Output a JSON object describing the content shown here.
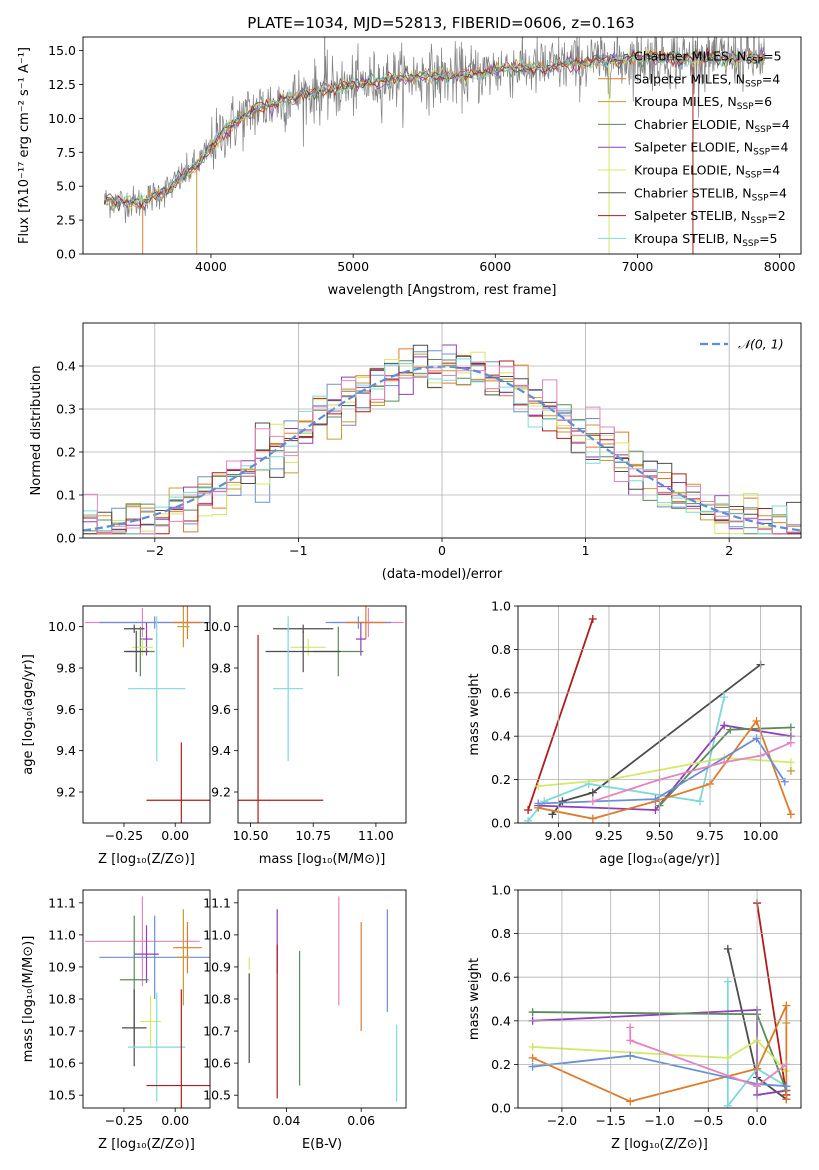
{
  "figure": {
    "title": "PLATE=1034, MJD=52813, FIBERID=0606, z=0.163"
  },
  "colors": {
    "Chabrier_MILES": "#6b8fd6",
    "Salpeter_MILES": "#e07b2a",
    "Kroupa_MILES": "#cc9a2e",
    "Chabrier_ELODIE": "#5b8a5b",
    "Salpeter_ELODIE": "#8f3fb8",
    "Kroupa_ELODIE": "#d4e86a",
    "Chabrier_STELIB": "#4d4d4d",
    "Salpeter_STELIB": "#b01c1c",
    "Kroupa_STELIB": "#7fd9d9",
    "pink": "#e584c0",
    "gaussian": "#5b8ed6",
    "grid": "#b0b0b0"
  },
  "chart_data": [
    {
      "id": "spectrum",
      "type": "line",
      "xlabel": "wavelength [Angstrom, rest frame]",
      "ylabel": "Flux [fλ10⁻¹⁷ erg cm⁻² s⁻¹ A⁻¹]",
      "xlim": [
        3100,
        8150
      ],
      "ylim": [
        0,
        16.0
      ],
      "xticks": [
        4000,
        5000,
        6000,
        7000,
        8000
      ],
      "yticks": [
        0.0,
        2.5,
        5.0,
        7.5,
        10.0,
        12.5,
        15.0
      ],
      "envelope": {
        "x": [
          3250,
          3500,
          3700,
          3900,
          4000,
          4100,
          4300,
          4500,
          4700,
          4900,
          5100,
          5300,
          5500,
          5700,
          5900,
          6100,
          6300,
          6500,
          6700,
          6900,
          7100,
          7300,
          7500,
          7700,
          7900
        ],
        "y": [
          3.9,
          3.8,
          4.8,
          6.6,
          7.9,
          9.2,
          10.6,
          11.3,
          11.9,
          12.2,
          12.6,
          13.0,
          13.1,
          13.1,
          13.3,
          13.8,
          13.7,
          14.0,
          14.2,
          14.3,
          14.5,
          14.4,
          14.5,
          14.4,
          14.5
        ]
      },
      "legend": [
        {
          "name": "Chabrier MILES, N",
          "sub": "SSP",
          "tail": "=5",
          "color_key": "Chabrier_MILES"
        },
        {
          "name": "Salpeter MILES, N",
          "sub": "SSP",
          "tail": "=4",
          "color_key": "Salpeter_MILES"
        },
        {
          "name": "Kroupa MILES, N",
          "sub": "SSP",
          "tail": "=6",
          "color_key": "Kroupa_MILES"
        },
        {
          "name": "Chabrier ELODIE, N",
          "sub": "SSP",
          "tail": "=4",
          "color_key": "Chabrier_ELODIE"
        },
        {
          "name": "Salpeter ELODIE, N",
          "sub": "SSP",
          "tail": "=4",
          "color_key": "Salpeter_ELODIE"
        },
        {
          "name": "Kroupa ELODIE, N",
          "sub": "SSP",
          "tail": "=4",
          "color_key": "Kroupa_ELODIE"
        },
        {
          "name": "Chabrier STELIB, N",
          "sub": "SSP",
          "tail": "=4",
          "color_key": "Chabrier_STELIB"
        },
        {
          "name": "Salpeter STELIB, N",
          "sub": "SSP",
          "tail": "=2",
          "color_key": "Salpeter_STELIB"
        },
        {
          "name": "Kroupa STELIB, N",
          "sub": "SSP",
          "tail": "=5",
          "color_key": "Kroupa_STELIB"
        }
      ],
      "legend_placement": "right"
    },
    {
      "id": "residuals",
      "type": "line",
      "xlabel": "(data-model)/error",
      "ylabel": "Normed distribution",
      "xlim": [
        -2.5,
        2.5
      ],
      "ylim": [
        0,
        0.5
      ],
      "xticks": [
        -2,
        -1,
        0,
        1,
        2
      ],
      "yticks": [
        0.0,
        0.1,
        0.2,
        0.3,
        0.4
      ],
      "grid": true,
      "bin_edges": [
        -2.5,
        -2.4,
        -2.3,
        -2.2,
        -2.1,
        -2.0,
        -1.9,
        -1.8,
        -1.7,
        -1.6,
        -1.5,
        -1.4,
        -1.3,
        -1.2,
        -1.1,
        -1.0,
        -0.9,
        -0.8,
        -0.7,
        -0.6,
        -0.5,
        -0.4,
        -0.3,
        -0.2,
        -0.1,
        0.0,
        0.1,
        0.2,
        0.3,
        0.4,
        0.5,
        0.6,
        0.7,
        0.8,
        0.9,
        1.0,
        1.1,
        1.2,
        1.3,
        1.4,
        1.5,
        1.6,
        1.7,
        1.8,
        1.9,
        2.0,
        2.1,
        2.2,
        2.3,
        2.4,
        2.5
      ],
      "gaussian": {
        "label": "𝒩(0, 1)",
        "mean": 0,
        "sigma": 1
      },
      "legend_placement": "top-right"
    },
    {
      "id": "age_vs_Z",
      "type": "scatter",
      "xlabel": "Z [log₁₀(Z/Z⊙)]",
      "ylabel": "age  [log₁₀(age/yr)]",
      "xlim": [
        -0.45,
        0.17
      ],
      "ylim": [
        9.05,
        10.1
      ],
      "xticks": [
        -0.25,
        0.0
      ],
      "yticks": [
        9.2,
        9.4,
        9.6,
        9.8,
        10.0
      ],
      "errorbars": [
        {
          "color_key": "pink",
          "x": -0.16,
          "y": 10.02,
          "xerr": 0.28,
          "yerr": 0.07
        },
        {
          "color_key": "Chabrier_MILES",
          "x": -0.1,
          "y": 10.02,
          "xerr": 0.27,
          "yerr": 0.03
        },
        {
          "color_key": "Salpeter_MILES",
          "x": 0.06,
          "y": 10.02,
          "xerr": 0.07,
          "yerr": 0.08
        },
        {
          "color_key": "Kroupa_MILES",
          "x": 0.04,
          "y": 10.0,
          "xerr": 0.03,
          "yerr": 0.1
        },
        {
          "color_key": "Salpeter_ELODIE",
          "x": -0.14,
          "y": 9.94,
          "xerr": 0.03,
          "yerr": 0.08
        },
        {
          "color_key": "Chabrier_STELIB",
          "x": -0.2,
          "y": 9.99,
          "xerr": 0.05,
          "yerr": 0.02
        },
        {
          "color_key": "Chabrier_ELODIE",
          "x": -0.17,
          "y": 9.88,
          "xerr": 0.07,
          "yerr": 0.12
        },
        {
          "color_key": "Kroupa_ELODIE",
          "x": -0.16,
          "y": 9.9,
          "xerr": 0.05,
          "yerr": 0.04
        },
        {
          "color_key": "Chabrier_STELIB",
          "x": -0.19,
          "y": 9.88,
          "xerr": 0.06,
          "yerr": 0.1
        },
        {
          "color_key": "Kroupa_STELIB",
          "x": -0.09,
          "y": 9.7,
          "xerr": 0.14,
          "yerr": 0.35
        },
        {
          "color_key": "Salpeter_STELIB",
          "x": 0.03,
          "y": 9.16,
          "xerr": 0.17,
          "yerr": 0.28
        }
      ]
    },
    {
      "id": "age_vs_mass",
      "type": "scatter",
      "xlabel": "mass [log₁₀(M/M⊙)]",
      "ylabel": "",
      "xlim": [
        10.45,
        11.12
      ],
      "ylim": [
        9.05,
        10.1
      ],
      "xticks": [
        10.5,
        10.75,
        11.0
      ],
      "yticks": [
        9.2,
        9.4,
        9.6,
        9.8,
        10.0
      ],
      "errorbars": [
        {
          "color_key": "pink",
          "x": 10.97,
          "y": 10.02,
          "xerr": 0.14,
          "yerr": 0.07
        },
        {
          "color_key": "Chabrier_MILES",
          "x": 10.93,
          "y": 10.02,
          "xerr": 0.13,
          "yerr": 0.03
        },
        {
          "color_key": "Salpeter_MILES",
          "x": 10.96,
          "y": 10.02,
          "xerr": 0.08,
          "yerr": 0.08
        },
        {
          "color_key": "Salpeter_ELODIE",
          "x": 10.94,
          "y": 9.94,
          "xerr": 0.02,
          "yerr": 0.08
        },
        {
          "color_key": "Chabrier_STELIB",
          "x": 10.71,
          "y": 9.99,
          "xerr": 0.12,
          "yerr": 0.02
        },
        {
          "color_key": "Chabrier_ELODIE",
          "x": 10.85,
          "y": 9.88,
          "xerr": 0.1,
          "yerr": 0.12
        },
        {
          "color_key": "Kroupa_ELODIE",
          "x": 10.73,
          "y": 9.9,
          "xerr": 0.07,
          "yerr": 0.04
        },
        {
          "color_key": "Chabrier_STELIB",
          "x": 10.71,
          "y": 9.88,
          "xerr": 0.15,
          "yerr": 0.1
        },
        {
          "color_key": "Kroupa_STELIB",
          "x": 10.65,
          "y": 9.7,
          "xerr": 0.06,
          "yerr": 0.35
        },
        {
          "color_key": "Salpeter_STELIB",
          "x": 10.53,
          "y": 9.16,
          "xerr": 0.26,
          "yerr": 0.8
        }
      ]
    },
    {
      "id": "weight_vs_age",
      "type": "line",
      "xlabel": "age  [log₁₀(age/yr)]",
      "ylabel": "mass weight",
      "xlim": [
        8.8,
        10.2
      ],
      "ylim": [
        0,
        1.0
      ],
      "xticks": [
        9.0,
        9.25,
        9.5,
        9.75,
        10.0
      ],
      "yticks": [
        0.0,
        0.2,
        0.4,
        0.6,
        0.8,
        1.0
      ],
      "grid": true,
      "series": [
        {
          "color_key": "Salpeter_STELIB",
          "x": [
            8.85,
            9.17
          ],
          "y": [
            0.06,
            0.94
          ]
        },
        {
          "color_key": "Chabrier_STELIB",
          "x": [
            8.97,
            9.02,
            9.17,
            10.0
          ],
          "y": [
            0.04,
            0.1,
            0.14,
            0.73
          ]
        },
        {
          "color_key": "Kroupa_STELIB",
          "x": [
            8.85,
            8.93,
            9.15,
            9.7,
            9.82
          ],
          "y": [
            0.01,
            0.1,
            0.18,
            0.1,
            0.58
          ]
        },
        {
          "color_key": "Salpeter_ELODIE",
          "x": [
            8.9,
            9.48,
            9.82,
            10.15
          ],
          "y": [
            0.08,
            0.06,
            0.45,
            0.4
          ]
        },
        {
          "color_key": "Chabrier_ELODIE",
          "x": [
            9.5,
            9.85,
            10.15
          ],
          "y": [
            0.08,
            0.43,
            0.44
          ]
        },
        {
          "color_key": "Kroupa_ELODIE",
          "x": [
            8.9,
            9.25,
            9.82,
            10.15
          ],
          "y": [
            0.17,
            0.2,
            0.3,
            0.28
          ]
        },
        {
          "color_key": "Salpeter_MILES",
          "x": [
            8.9,
            9.17,
            9.48,
            9.75,
            9.98,
            10.15
          ],
          "y": [
            0.07,
            0.02,
            0.1,
            0.18,
            0.47,
            0.04
          ]
        },
        {
          "color_key": "Chabrier_MILES",
          "x": [
            8.9,
            9.48,
            9.98,
            10.12
          ],
          "y": [
            0.09,
            0.11,
            0.39,
            0.19
          ]
        },
        {
          "color_key": "pink",
          "x": [
            9.17,
            9.5,
            9.82,
            10.0,
            10.15
          ],
          "y": [
            0.1,
            0.2,
            0.28,
            0.31,
            0.37
          ]
        },
        {
          "color_key": "Kroupa_MILES",
          "x": [
            10.15
          ],
          "y": [
            0.24
          ]
        }
      ]
    },
    {
      "id": "mass_vs_Z",
      "type": "scatter",
      "xlabel": "Z [log₁₀(Z/Z⊙)]",
      "ylabel": "mass [log₁₀(M/M⊙)]",
      "xlim": [
        -0.45,
        0.17
      ],
      "ylim": [
        10.46,
        11.14
      ],
      "xticks": [
        -0.25,
        0.0
      ],
      "yticks": [
        10.5,
        10.6,
        10.7,
        10.8,
        10.9,
        11.0,
        11.1
      ],
      "errorbars": [
        {
          "color_key": "pink",
          "x": -0.16,
          "y": 10.98,
          "xerr": 0.28,
          "yerr": 0.14
        },
        {
          "color_key": "Chabrier_MILES",
          "x": -0.1,
          "y": 10.93,
          "xerr": 0.27,
          "yerr": 0.13
        },
        {
          "color_key": "Salpeter_MILES",
          "x": 0.06,
          "y": 10.96,
          "xerr": 0.07,
          "yerr": 0.08
        },
        {
          "color_key": "Kroupa_MILES",
          "x": 0.04,
          "y": 10.93,
          "xerr": 0.03,
          "yerr": 0.15
        },
        {
          "color_key": "Salpeter_ELODIE",
          "x": -0.14,
          "y": 10.94,
          "xerr": 0.06,
          "yerr": 0.09
        },
        {
          "color_key": "Chabrier_ELODIE",
          "x": -0.2,
          "y": 10.86,
          "xerr": 0.07,
          "yerr": 0.2
        },
        {
          "color_key": "Kroupa_ELODIE",
          "x": -0.12,
          "y": 10.73,
          "xerr": 0.05,
          "yerr": 0.08
        },
        {
          "color_key": "Chabrier_STELIB",
          "x": -0.2,
          "y": 10.71,
          "xerr": 0.06,
          "yerr": 0.12
        },
        {
          "color_key": "Kroupa_STELIB",
          "x": -0.09,
          "y": 10.65,
          "xerr": 0.14,
          "yerr": 0.17
        },
        {
          "color_key": "Salpeter_STELIB",
          "x": 0.03,
          "y": 10.53,
          "xerr": 0.17,
          "yerr": 0.3
        }
      ]
    },
    {
      "id": "mass_vs_ebv",
      "type": "scatter",
      "xlabel": "E(B-V)",
      "ylabel": "",
      "xlim": [
        0.027,
        0.072
      ],
      "ylim": [
        10.46,
        11.14
      ],
      "xticks": [
        0.04,
        0.06
      ],
      "yticks": [
        10.5,
        10.6,
        10.7,
        10.8,
        10.9,
        11.0,
        11.1
      ],
      "errorbars": [
        {
          "color_key": "Kroupa_ELODIE",
          "x": 0.03,
          "y": 10.91,
          "xerr": 0,
          "yerr": 0.02
        },
        {
          "color_key": "Chabrier_STELIB",
          "x": 0.03,
          "y": 10.74,
          "xerr": 0,
          "yerr": 0.14
        },
        {
          "color_key": "Salpeter_ELODIE",
          "x": 0.0375,
          "y": 10.98,
          "xerr": 0,
          "yerr": 0.1
        },
        {
          "color_key": "Salpeter_STELIB",
          "x": 0.0375,
          "y": 10.73,
          "xerr": 0,
          "yerr": 0.24
        },
        {
          "color_key": "Chabrier_ELODIE",
          "x": 0.0435,
          "y": 10.74,
          "xerr": 0,
          "yerr": 0.21
        },
        {
          "color_key": "pink",
          "x": 0.054,
          "y": 10.95,
          "xerr": 0,
          "yerr": 0.17
        },
        {
          "color_key": "Salpeter_MILES",
          "x": 0.06,
          "y": 10.87,
          "xerr": 0,
          "yerr": 0.17
        },
        {
          "color_key": "Chabrier_MILES",
          "x": 0.067,
          "y": 10.92,
          "xerr": 0,
          "yerr": 0.16
        },
        {
          "color_key": "Kroupa_STELIB",
          "x": 0.0695,
          "y": 10.6,
          "xerr": 0,
          "yerr": 0.12
        }
      ]
    },
    {
      "id": "weight_vs_Z",
      "type": "line",
      "xlabel": "Z [log₁₀(Z/Z⊙)]",
      "ylabel": "mass weight",
      "xlim": [
        -2.45,
        0.45
      ],
      "ylim": [
        0,
        1.0
      ],
      "xticks": [
        -2.0,
        -1.5,
        -1.0,
        -0.5,
        0.0
      ],
      "yticks": [
        0.0,
        0.2,
        0.4,
        0.6,
        0.8,
        1.0
      ],
      "grid": true,
      "series": [
        {
          "color_key": "Salpeter_STELIB",
          "x": [
            0.0,
            0.3
          ],
          "y": [
            0.94,
            0.06
          ]
        },
        {
          "color_key": "Chabrier_STELIB",
          "x": [
            -0.3,
            0.0,
            0.3
          ],
          "y": [
            0.73,
            0.14,
            0.04
          ]
        },
        {
          "color_key": "Kroupa_STELIB",
          "x": [
            -0.3,
            -0.3,
            0.0,
            0.3
          ],
          "y": [
            0.58,
            0.01,
            0.18,
            0.1
          ]
        },
        {
          "color_key": "Salpeter_ELODIE",
          "x": [
            -2.3,
            0.0,
            0.0,
            0.3
          ],
          "y": [
            0.4,
            0.45,
            0.06,
            0.08
          ]
        },
        {
          "color_key": "Chabrier_ELODIE",
          "x": [
            -2.3,
            0.0,
            0.3
          ],
          "y": [
            0.44,
            0.43,
            0.08
          ]
        },
        {
          "color_key": "Kroupa_ELODIE",
          "x": [
            -2.3,
            -0.3,
            0.0,
            0.3
          ],
          "y": [
            0.28,
            0.23,
            0.31,
            0.17
          ]
        },
        {
          "color_key": "Salpeter_MILES",
          "x": [
            -2.3,
            -1.3,
            0.0,
            0.3,
            0.3
          ],
          "y": [
            0.23,
            0.03,
            0.18,
            0.47,
            0.04
          ]
        },
        {
          "color_key": "Chabrier_MILES",
          "x": [
            -2.3,
            -1.3,
            0.0,
            0.3
          ],
          "y": [
            0.19,
            0.24,
            0.11,
            0.1
          ]
        },
        {
          "color_key": "pink",
          "x": [
            -1.3,
            -1.3,
            0.0,
            0.3
          ],
          "y": [
            0.37,
            0.31,
            0.1,
            0.2
          ]
        },
        {
          "color_key": "Kroupa_MILES",
          "x": [
            0.3
          ],
          "y": [
            0.39
          ]
        }
      ]
    }
  ]
}
